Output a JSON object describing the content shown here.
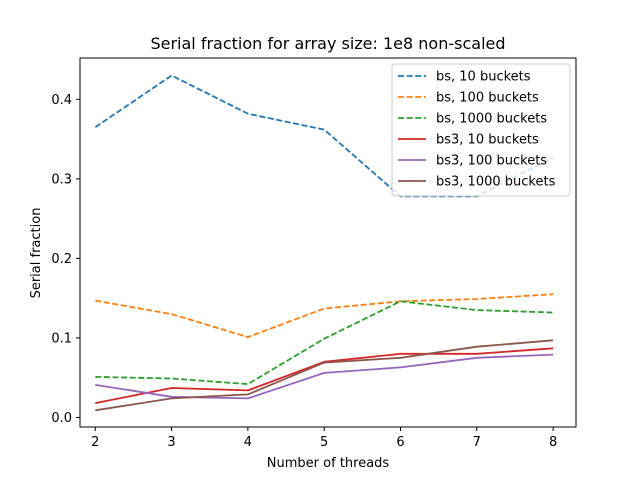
{
  "chart_data": {
    "type": "line",
    "title": "Serial fraction for array size: 1e8 non-scaled",
    "xlabel": "Number of threads",
    "ylabel": "Serial fraction",
    "x": [
      2,
      3,
      4,
      5,
      6,
      7,
      8
    ],
    "xlim": [
      1.8,
      8.3
    ],
    "ylim": [
      -0.012,
      0.452
    ],
    "xticks": [
      "2",
      "3",
      "4",
      "5",
      "6",
      "7",
      "8"
    ],
    "yticks": [
      "0.0",
      "0.1",
      "0.2",
      "0.3",
      "0.4"
    ],
    "ytick_values": [
      0.0,
      0.1,
      0.2,
      0.3,
      0.4
    ],
    "grid": false,
    "legend_position": "top-right",
    "series": [
      {
        "name": "bs, 10 buckets",
        "color": "#1f77b4",
        "style": "dashed",
        "values": [
          0.365,
          0.43,
          0.382,
          0.362,
          0.278,
          0.278,
          0.327
        ]
      },
      {
        "name": "bs, 100 buckets",
        "color": "#ff7f0e",
        "style": "dashed",
        "values": [
          0.147,
          0.13,
          0.101,
          0.137,
          0.146,
          0.149,
          0.155
        ]
      },
      {
        "name": "bs, 1000 buckets",
        "color": "#2ca02c",
        "style": "dashed",
        "values": [
          0.051,
          0.049,
          0.042,
          0.099,
          0.146,
          0.135,
          0.132
        ]
      },
      {
        "name": "bs3, 10 buckets",
        "color": "#d62728",
        "style": "solid",
        "values": [
          0.018,
          0.037,
          0.034,
          0.07,
          0.08,
          0.08,
          0.087
        ]
      },
      {
        "name": "bs3, 100 buckets",
        "color": "#9467bd",
        "style": "solid",
        "values": [
          0.041,
          0.026,
          0.024,
          0.056,
          0.063,
          0.075,
          0.079
        ]
      },
      {
        "name": "bs3, 1000 buckets",
        "color": "#8c564b",
        "style": "solid",
        "values": [
          0.009,
          0.024,
          0.029,
          0.069,
          0.075,
          0.089,
          0.097
        ]
      }
    ]
  }
}
